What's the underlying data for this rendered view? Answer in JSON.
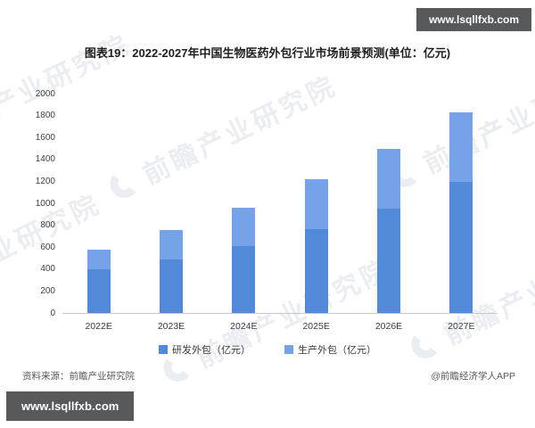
{
  "title": "图表19：2022-2027年中国生物医药外包行业市场前景预测(单位：亿元)",
  "badge_top": {
    "text": "www.lsqllfxb.com"
  },
  "badge_bottom": {
    "text": "www.lsqllfxb.com"
  },
  "watermark": {
    "text": "前瞻产业研究院"
  },
  "footer": {
    "source": "资料来源：前瞻产业研究院",
    "credit": "@前瞻经济学人APP"
  },
  "chart_data": {
    "type": "bar",
    "stacked": true,
    "title": "2022-2027年中国生物医药外包行业市场前景预测",
    "unit": "亿元",
    "categories": [
      "2022E",
      "2023E",
      "2024E",
      "2025E",
      "2026E",
      "2027E"
    ],
    "series": [
      {
        "key": "rd-outsourcing",
        "name": "研发外包（亿元）",
        "color": "#5289D8",
        "values": [
          400,
          485,
          610,
          765,
          955,
          1195
        ]
      },
      {
        "key": "production-outsourcing",
        "name": "生产外包（亿元）",
        "color": "#76A3E8",
        "values": [
          180,
          275,
          350,
          455,
          545,
          635
        ]
      }
    ],
    "totals": [
      580,
      760,
      960,
      1220,
      1500,
      1830
    ],
    "ylim": [
      0,
      2000
    ],
    "ytick_step": 200,
    "grid": false,
    "legend_position": "bottom"
  }
}
